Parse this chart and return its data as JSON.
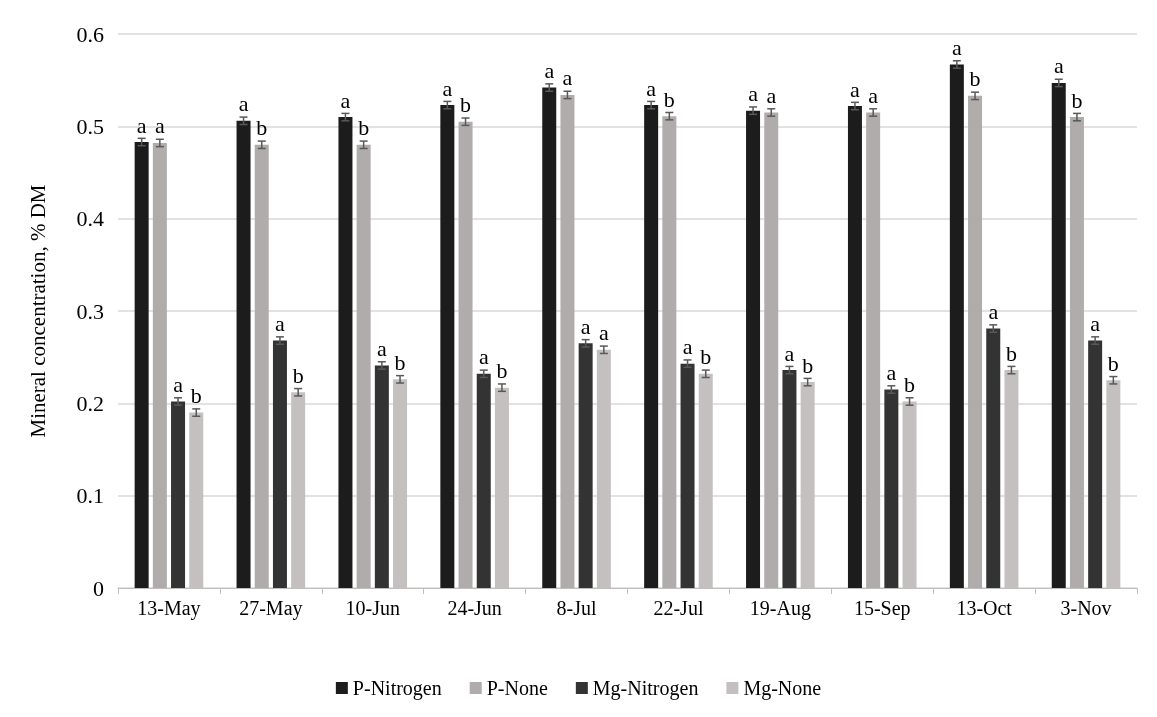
{
  "chart_data": {
    "type": "bar",
    "ylabel": "Mineral concentration, % DM",
    "categories": [
      "13-May",
      "27-May",
      "10-Jun",
      "24-Jun",
      "8-Jul",
      "22-Jul",
      "19-Aug",
      "15-Sep",
      "13-Oct",
      "3-Nov"
    ],
    "series": [
      {
        "name": "P-Nitrogen",
        "color": "#1c1c1c",
        "values": [
          0.483,
          0.506,
          0.51,
          0.523,
          0.542,
          0.523,
          0.517,
          0.522,
          0.567,
          0.547
        ],
        "errors": [
          0.004,
          0.004,
          0.004,
          0.004,
          0.004,
          0.004,
          0.004,
          0.004,
          0.004,
          0.004
        ],
        "value_labels": [
          "a",
          "a",
          "a",
          "a",
          "a",
          "a",
          "a",
          "a",
          "a",
          "a"
        ]
      },
      {
        "name": "P-None",
        "color": "#b0acab",
        "values": [
          0.482,
          0.48,
          0.48,
          0.505,
          0.534,
          0.511,
          0.515,
          0.515,
          0.533,
          0.51
        ],
        "errors": [
          0.004,
          0.004,
          0.004,
          0.004,
          0.004,
          0.004,
          0.004,
          0.004,
          0.004,
          0.004
        ],
        "value_labels": [
          "a",
          "b",
          "b",
          "b",
          "a",
          "b",
          "a",
          "a",
          "b",
          "b"
        ]
      },
      {
        "name": "Mg-Nitrogen",
        "color": "#333333",
        "values": [
          0.202,
          0.268,
          0.241,
          0.232,
          0.265,
          0.243,
          0.236,
          0.215,
          0.281,
          0.268
        ],
        "errors": [
          0.004,
          0.004,
          0.004,
          0.004,
          0.004,
          0.004,
          0.004,
          0.004,
          0.004,
          0.004
        ],
        "value_labels": [
          "a",
          "a",
          "a",
          "a",
          "a",
          "a",
          "a",
          "a",
          "a",
          "a"
        ]
      },
      {
        "name": "Mg-None",
        "color": "#c4c0c0",
        "values": [
          0.19,
          0.212,
          0.226,
          0.217,
          0.258,
          0.232,
          0.223,
          0.202,
          0.236,
          0.225
        ],
        "errors": [
          0.004,
          0.004,
          0.004,
          0.004,
          0.004,
          0.004,
          0.004,
          0.004,
          0.004,
          0.004
        ],
        "value_labels": [
          "b",
          "b",
          "b",
          "b",
          "a",
          "b",
          "b",
          "b",
          "b",
          "b"
        ]
      }
    ],
    "ylim": [
      0,
      0.6
    ],
    "yticks": [
      0,
      0.1,
      0.2,
      0.3,
      0.4,
      0.5,
      0.6
    ],
    "grid": "y",
    "legend": "bottom"
  }
}
